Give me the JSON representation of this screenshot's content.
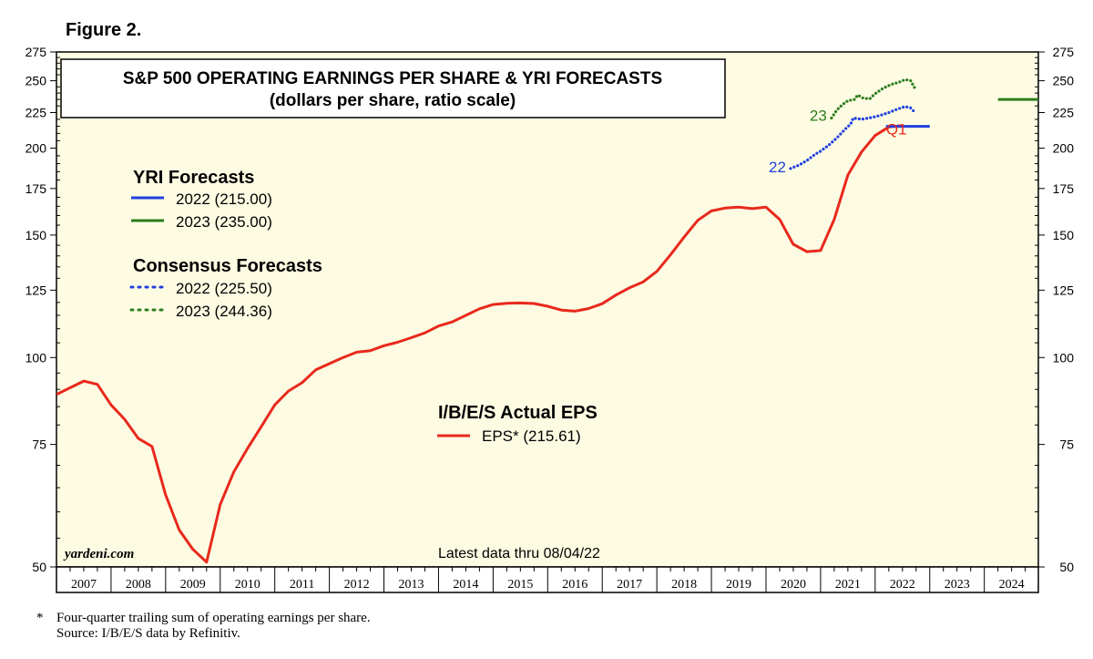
{
  "figure_label": "Figure 2.",
  "footnote": {
    "marker": "*",
    "line1": "Four-quarter trailing sum of operating earnings per share.",
    "line2": "Source: I/B/E/S data by Refinitiv."
  },
  "chart_data": {
    "type": "line",
    "title": "S&P 500 OPERATING EARNINGS PER SHARE & YRI FORECASTS",
    "subtitle": "(dollars per share, ratio scale)",
    "y_scale": "log",
    "ylim": [
      50,
      275
    ],
    "y_ticks": [
      50,
      75,
      100,
      125,
      150,
      175,
      200,
      225,
      250,
      275
    ],
    "xlim": [
      2007,
      2024.99
    ],
    "x_ticks": [
      "2007",
      "2008",
      "2009",
      "2010",
      "2011",
      "2012",
      "2013",
      "2014",
      "2015",
      "2016",
      "2017",
      "2018",
      "2019",
      "2020",
      "2021",
      "2022",
      "2023",
      "2024"
    ],
    "background": "#fdfce3",
    "watermark": "yardeni.com",
    "note": "Latest data thru 08/04/22",
    "colors": {
      "eps": "#e8291c",
      "yri_2022": "#1f3fe0",
      "yri_2023": "#2e7d1e",
      "cons_2022": "#1f3fe0",
      "cons_2023": "#2e7d1e"
    },
    "legend_yri": {
      "title": "YRI Forecasts",
      "items": [
        {
          "label": "2022 (215.00)",
          "style": "solid",
          "color": "#1f3fe0"
        },
        {
          "label": "2023 (235.00)",
          "style": "solid",
          "color": "#2e7d1e"
        }
      ]
    },
    "legend_consensus": {
      "title": "Consensus Forecasts",
      "items": [
        {
          "label": "2022 (225.50)",
          "style": "dotted",
          "color": "#1f3fe0"
        },
        {
          "label": "2023 (244.36)",
          "style": "dotted",
          "color": "#2e7d1e"
        }
      ]
    },
    "legend_actual": {
      "title": "I/B/E/S Actual EPS",
      "items": [
        {
          "label": "EPS* (215.61)",
          "style": "solid",
          "color": "#e8291c"
        }
      ]
    },
    "annotations": [
      {
        "text": "22",
        "color": "#1f3fe0",
        "x": 2020.05,
        "y": 188
      },
      {
        "text": "23",
        "color": "#2e7d1e",
        "x": 2020.8,
        "y": 223
      },
      {
        "text": "Q1",
        "color": "#e8291c",
        "x": 2022.2,
        "y": 213
      }
    ],
    "series": [
      {
        "name": "EPS* (215.61)",
        "color": "#e8291c",
        "style": "solid",
        "points": [
          [
            2007.0,
            88.5
          ],
          [
            2007.25,
            90.5
          ],
          [
            2007.5,
            92.5
          ],
          [
            2007.75,
            91.5
          ],
          [
            2008.0,
            85.5
          ],
          [
            2008.25,
            81.5
          ],
          [
            2008.5,
            76.5
          ],
          [
            2008.75,
            74.5
          ],
          [
            2009.0,
            63.5
          ],
          [
            2009.25,
            56.5
          ],
          [
            2009.5,
            53.0
          ],
          [
            2009.75,
            50.8
          ],
          [
            2010.0,
            61.5
          ],
          [
            2010.25,
            68.5
          ],
          [
            2010.5,
            74.0
          ],
          [
            2010.75,
            79.5
          ],
          [
            2011.0,
            85.5
          ],
          [
            2011.25,
            89.5
          ],
          [
            2011.5,
            92.0
          ],
          [
            2011.75,
            96.0
          ],
          [
            2012.0,
            98.0
          ],
          [
            2012.25,
            100.0
          ],
          [
            2012.5,
            101.8
          ],
          [
            2012.75,
            102.3
          ],
          [
            2013.0,
            104.0
          ],
          [
            2013.25,
            105.2
          ],
          [
            2013.5,
            106.8
          ],
          [
            2013.75,
            108.5
          ],
          [
            2014.0,
            111.0
          ],
          [
            2014.25,
            112.5
          ],
          [
            2014.5,
            115.0
          ],
          [
            2014.75,
            117.5
          ],
          [
            2015.0,
            119.2
          ],
          [
            2015.25,
            119.7
          ],
          [
            2015.5,
            119.8
          ],
          [
            2015.75,
            119.6
          ],
          [
            2016.0,
            118.5
          ],
          [
            2016.25,
            117.0
          ],
          [
            2016.5,
            116.6
          ],
          [
            2016.75,
            117.6
          ],
          [
            2017.0,
            119.5
          ],
          [
            2017.25,
            123.0
          ],
          [
            2017.5,
            126.0
          ],
          [
            2017.75,
            128.5
          ],
          [
            2018.0,
            133.0
          ],
          [
            2018.25,
            140.5
          ],
          [
            2018.5,
            149.0
          ],
          [
            2018.75,
            157.5
          ],
          [
            2019.0,
            162.5
          ],
          [
            2019.25,
            164.0
          ],
          [
            2019.5,
            164.5
          ],
          [
            2019.75,
            163.7
          ],
          [
            2020.0,
            164.5
          ],
          [
            2020.25,
            158.0
          ],
          [
            2020.5,
            145.5
          ],
          [
            2020.75,
            142.0
          ],
          [
            2021.0,
            142.5
          ],
          [
            2021.25,
            158.0
          ],
          [
            2021.5,
            183.0
          ],
          [
            2021.75,
            197.5
          ],
          [
            2022.0,
            208.5
          ],
          [
            2022.25,
            214.5
          ],
          [
            2022.5,
            215.6
          ]
        ]
      },
      {
        "name": "2022 (215.00)",
        "color": "#1f3fe0",
        "style": "solid",
        "points": [
          [
            2022.2,
            215.0
          ],
          [
            2023.0,
            215.0
          ]
        ]
      },
      {
        "name": "2023 (235.00)",
        "color": "#2e7d1e",
        "style": "solid",
        "points": [
          [
            2024.25,
            235.0
          ],
          [
            2025.0,
            235.0
          ]
        ]
      },
      {
        "name": "2022 (225.50)",
        "color": "#1f3fe0",
        "style": "dotted",
        "points": [
          [
            2020.45,
            187.0
          ],
          [
            2020.6,
            189.0
          ],
          [
            2020.75,
            192.0
          ],
          [
            2020.9,
            196.0
          ],
          [
            2021.0,
            198.0
          ],
          [
            2021.15,
            202.0
          ],
          [
            2021.3,
            207.0
          ],
          [
            2021.45,
            213.0
          ],
          [
            2021.55,
            216.5
          ],
          [
            2021.6,
            221.0
          ],
          [
            2021.75,
            220.0
          ],
          [
            2021.95,
            221.5
          ],
          [
            2022.1,
            223.0
          ],
          [
            2022.25,
            225.0
          ],
          [
            2022.4,
            227.5
          ],
          [
            2022.55,
            229.5
          ],
          [
            2022.65,
            228.5
          ],
          [
            2022.72,
            225.5
          ]
        ]
      },
      {
        "name": "2023 (244.36)",
        "color": "#2e7d1e",
        "style": "dotted",
        "points": [
          [
            2021.2,
            221.0
          ],
          [
            2021.3,
            227.0
          ],
          [
            2021.4,
            231.0
          ],
          [
            2021.5,
            234.0
          ],
          [
            2021.62,
            235.0
          ],
          [
            2021.68,
            238.5
          ],
          [
            2021.78,
            236.0
          ],
          [
            2021.9,
            235.5
          ],
          [
            2022.0,
            239.5
          ],
          [
            2022.15,
            244.0
          ],
          [
            2022.3,
            247.0
          ],
          [
            2022.45,
            249.0
          ],
          [
            2022.55,
            251.0
          ],
          [
            2022.65,
            250.0
          ],
          [
            2022.72,
            244.5
          ]
        ]
      }
    ]
  }
}
